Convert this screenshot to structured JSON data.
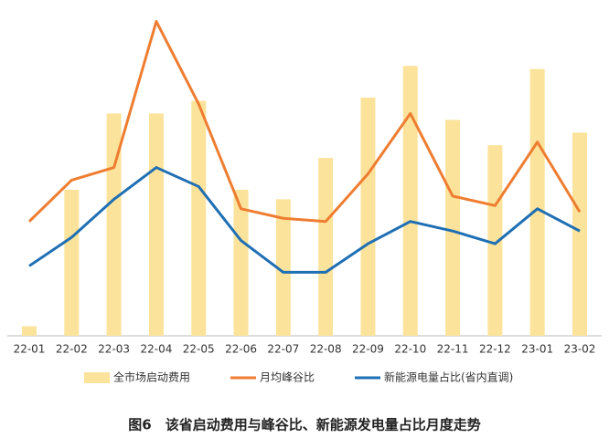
{
  "chart_data": {
    "type": "bar-line",
    "title": "图6　该省启动费用与峰谷比、新能源发电量占比月度走势",
    "categories": [
      "22-01",
      "22-02",
      "22-03",
      "22-04",
      "22-05",
      "22-06",
      "22-07",
      "22-08",
      "22-09",
      "22-10",
      "22-11",
      "22-12",
      "23-01",
      "23-02"
    ],
    "ylim": [
      0,
      100
    ],
    "series": [
      {
        "name": "全市场启动费用",
        "mark": "bar",
        "color": "#fbe39b",
        "values": [
          3,
          46,
          70,
          70,
          74,
          46,
          43,
          56,
          75,
          85,
          68,
          60,
          84,
          64
        ]
      },
      {
        "name": "月均峰谷比",
        "mark": "line",
        "color": "#ee7d31",
        "values": [
          36,
          49,
          53,
          99,
          73,
          40,
          37,
          36,
          51,
          70,
          44,
          41,
          61,
          39
        ]
      },
      {
        "name": "新能源电量占比(省内直调)",
        "mark": "line",
        "color": "#1f6fb4",
        "values": [
          22,
          31,
          43,
          53,
          47,
          30,
          20,
          20,
          29,
          36,
          33,
          29,
          40,
          33
        ]
      }
    ]
  }
}
